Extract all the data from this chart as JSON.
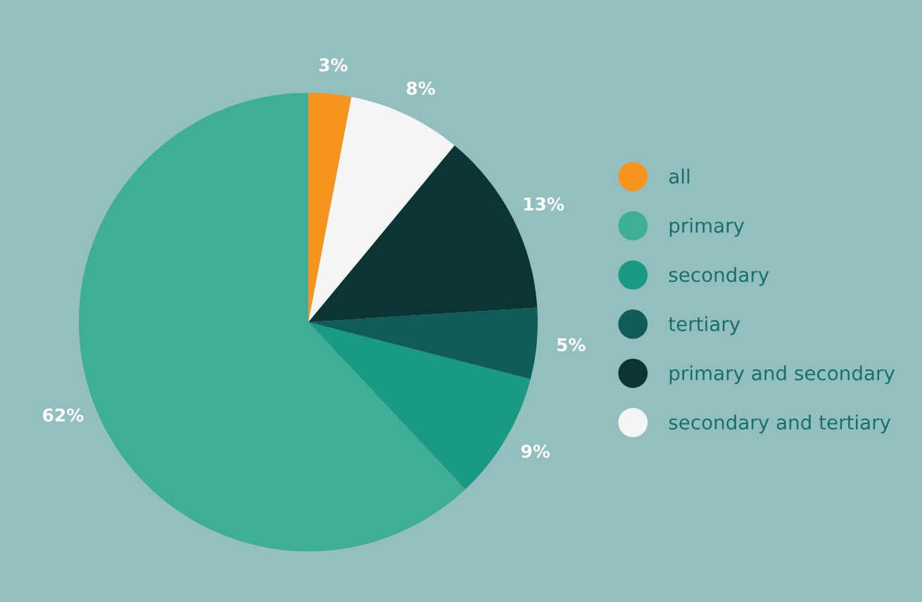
{
  "chart_data": {
    "type": "pie",
    "categories": [
      "all",
      "primary",
      "secondary",
      "tertiary",
      "primary and secondary",
      "secondary and tertiary"
    ],
    "values": [
      3,
      62,
      9,
      5,
      13,
      8
    ],
    "value_labels": [
      "3%",
      "62%",
      "9%",
      "5%",
      "13%",
      "8%"
    ],
    "colors": [
      "#f7941d",
      "#3fae97",
      "#1a9985",
      "#0f5c5a",
      "#0b3533",
      "#f5f5f5"
    ],
    "legend": "right"
  }
}
